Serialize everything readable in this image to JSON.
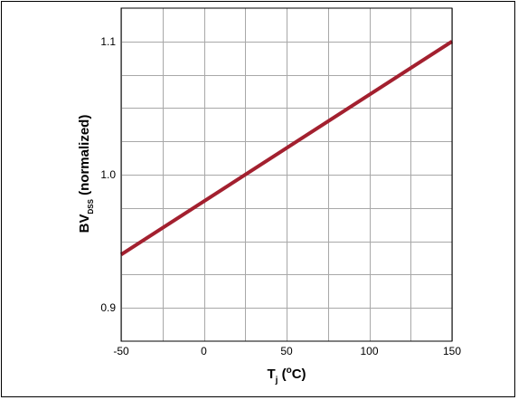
{
  "chart_data": {
    "type": "line",
    "xlabel": {
      "main": "T",
      "sub": "j",
      "suffix": " (",
      "sup": "o",
      "unit": "C)"
    },
    "ylabel": {
      "main": "BV",
      "sub": "DSS",
      "suffix": " (normalized)"
    },
    "xlim": [
      -50,
      150
    ],
    "ylim": [
      0.875,
      1.125
    ],
    "xticks": [
      -50,
      0,
      50,
      100,
      150
    ],
    "xtick_labels": [
      "-50",
      "0",
      "50",
      "100",
      "150"
    ],
    "xminor": [
      -25,
      25,
      75,
      125
    ],
    "yticks": [
      0.9,
      1.0,
      1.1
    ],
    "ytick_labels": [
      "0.9",
      "1.0",
      "1.1"
    ],
    "yminor": [
      0.925,
      0.95,
      0.975,
      1.025,
      1.05,
      1.075
    ],
    "grid": true,
    "series": [
      {
        "x": [
          -50,
          150
        ],
        "y": [
          0.94,
          1.1
        ],
        "color": "#a3202f"
      }
    ]
  }
}
